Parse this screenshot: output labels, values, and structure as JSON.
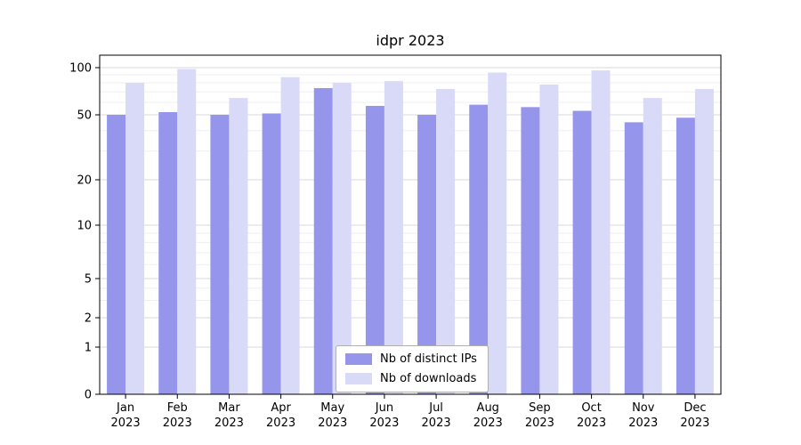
{
  "title": "idpr 2023",
  "chart_data": {
    "type": "bar",
    "title": "idpr 2023",
    "yscale": "symlog",
    "grid": true,
    "legend_position": "lower center",
    "categories": [
      "Jan",
      "Feb",
      "Mar",
      "Apr",
      "May",
      "Jun",
      "Jul",
      "Aug",
      "Sep",
      "Oct",
      "Nov",
      "Dec"
    ],
    "category_year": "2023",
    "yticks": [
      0,
      1,
      2,
      5,
      10,
      20,
      50,
      100
    ],
    "ylim": [
      0,
      110
    ],
    "xlabel": "",
    "ylabel": "",
    "series": [
      {
        "name": "Nb of distinct IPs",
        "color": "#9595ec",
        "values": [
          50,
          52,
          50,
          51,
          74,
          57,
          50,
          58,
          56,
          53,
          45,
          48
        ]
      },
      {
        "name": "Nb of downloads",
        "color": "#d9d9f8",
        "values": [
          80,
          98,
          64,
          87,
          80,
          82,
          73,
          93,
          78,
          96,
          64,
          73
        ]
      }
    ]
  }
}
